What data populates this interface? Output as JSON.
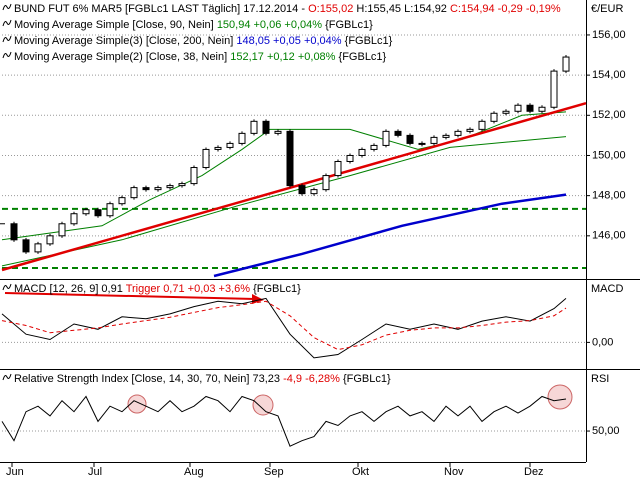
{
  "chart_data": [
    {
      "type": "candlestick",
      "header": [
        {
          "text": "BUND FUT 6% MAR5 [FGBLc1 LAST Täglich] 17.12.2014 - ",
          "color": "#000000"
        },
        {
          "text": "O:155,02 ",
          "color": "#e00000"
        },
        {
          "text": "H:155,45 L:154,92 ",
          "color": "#000000"
        },
        {
          "text": "C:154,94 -0,29 -0,19%",
          "color": "#e00000"
        }
      ],
      "unit": "€/EUR",
      "source": "{FGBLc1}",
      "x": [
        0,
        3,
        6,
        9,
        12,
        15,
        18,
        21,
        24,
        27,
        30,
        33,
        36,
        39,
        42,
        45,
        48,
        51,
        54,
        57,
        60,
        63,
        66,
        69,
        72,
        75,
        78,
        81,
        84,
        87,
        90,
        93,
        96,
        99,
        102,
        105,
        108,
        111,
        114,
        117,
        120,
        123,
        126,
        129,
        132,
        135,
        138,
        141
      ],
      "close": [
        146.6,
        145.8,
        145.2,
        145.6,
        146.0,
        146.6,
        147.1,
        147.3,
        147.0,
        147.6,
        147.9,
        148.4,
        148.3,
        148.4,
        148.5,
        148.6,
        149.4,
        150.3,
        150.4,
        150.6,
        151.1,
        151.7,
        151.1,
        151.2,
        148.5,
        148.1,
        148.3,
        149.0,
        149.7,
        150.0,
        150.3,
        150.5,
        151.2,
        151.0,
        150.6,
        150.6,
        150.9,
        151.0,
        151.2,
        151.3,
        151.7,
        152.1,
        152.2,
        152.5,
        152.2,
        152.4,
        154.2,
        154.9
      ],
      "overlays": [
        {
          "name": "Moving Average Simple [Close, 90, Nein]",
          "value_text": "150,94 +0,06 +0,04%",
          "color": "#008000",
          "width": 1,
          "x": [
            0,
            30,
            59,
            87,
            112,
            141
          ],
          "values": [
            144.5,
            145.8,
            147.5,
            149.0,
            150.4,
            150.94
          ]
        },
        {
          "name": "Moving Average Simple(3) [Close, 200, Nein]",
          "value_text": "148,05 +0,05 +0,04%",
          "color": "#0000cc",
          "width": 2.5,
          "x": [
            53,
            75,
            100,
            125,
            141
          ],
          "values": [
            144.0,
            145.1,
            146.5,
            147.6,
            148.05
          ]
        },
        {
          "name": "Moving Average Simple(2) [Close, 38, Nein]",
          "value_text": "152,17 +0,12 +0,08%",
          "color": "#008000",
          "width": 1,
          "x": [
            0,
            25,
            37,
            50,
            60,
            67,
            87,
            104,
            115,
            130,
            141
          ],
          "values": [
            145.8,
            146.5,
            147.8,
            149.0,
            150.3,
            151.3,
            151.3,
            150.3,
            150.8,
            152.0,
            152.17
          ]
        }
      ],
      "trendline": {
        "color": "#e00000",
        "x": [
          0,
          146
        ],
        "values": [
          144.3,
          152.6
        ]
      },
      "levels": {
        "color": "#008000",
        "values": [
          147.34,
          144.4
        ]
      },
      "ylim": [
        143.9,
        157.74
      ],
      "yticks": [
        {
          "value": 146,
          "label": "146,00"
        },
        {
          "value": 148,
          "label": "148,00"
        },
        {
          "value": 150,
          "label": "150,00"
        },
        {
          "value": 152,
          "label": "152,00"
        },
        {
          "value": 154,
          "label": "154,00"
        },
        {
          "value": 156,
          "label": "156,00"
        }
      ]
    },
    {
      "type": "line",
      "title": "MACD",
      "legend": [
        {
          "text": "MACD [12, 26, 9] 0,91 ",
          "color": "#000000"
        },
        {
          "text": "Trigger 0,71 +0,03 +3,6% ",
          "color": "#e00000"
        },
        {
          "text": "{FGBLc1}",
          "color": "#000000"
        }
      ],
      "x": [
        0,
        6,
        12,
        18,
        24,
        30,
        36,
        42,
        48,
        54,
        60,
        66,
        72,
        78,
        84,
        90,
        96,
        102,
        108,
        114,
        120,
        126,
        132,
        138,
        141
      ],
      "series": [
        {
          "name": "MACD",
          "color": "#000000",
          "dash": false,
          "values": [
            0.59,
            0.17,
            0.06,
            0.38,
            0.27,
            0.53,
            0.49,
            0.59,
            0.74,
            0.85,
            0.8,
            0.91,
            0.17,
            -0.32,
            -0.25,
            0.06,
            0.38,
            0.27,
            0.38,
            0.27,
            0.44,
            0.53,
            0.44,
            0.7,
            0.91
          ]
        },
        {
          "name": "Trigger",
          "color": "#e00000",
          "dash": true,
          "values": [
            0.45,
            0.35,
            0.2,
            0.25,
            0.3,
            0.38,
            0.45,
            0.52,
            0.62,
            0.72,
            0.78,
            0.85,
            0.55,
            0.1,
            -0.15,
            -0.05,
            0.15,
            0.25,
            0.3,
            0.3,
            0.35,
            0.42,
            0.45,
            0.55,
            0.71
          ]
        }
      ],
      "ylim": [
        -0.53,
        1.27
      ],
      "yticks": [
        {
          "value": 0,
          "label": "0,00"
        }
      ]
    },
    {
      "type": "line",
      "title": "RSI",
      "legend": [
        {
          "text": "Relative Strength Index [Close, 14, 30, 70, Nein] 73,23 ",
          "color": "#000000"
        },
        {
          "text": "-4,9 -6,28% ",
          "color": "#e00000"
        },
        {
          "text": "{FGBLc1}",
          "color": "#000000"
        }
      ],
      "x": [
        0,
        3,
        6,
        9,
        12,
        15,
        18,
        21,
        24,
        27,
        30,
        33,
        36,
        39,
        42,
        45,
        48,
        51,
        54,
        57,
        60,
        63,
        66,
        69,
        72,
        75,
        78,
        81,
        84,
        87,
        90,
        93,
        96,
        99,
        102,
        105,
        108,
        111,
        114,
        117,
        120,
        123,
        126,
        129,
        132,
        135,
        138,
        141
      ],
      "series": [
        {
          "name": "RSI",
          "color": "#000000",
          "dash": false,
          "values": [
            57,
            43,
            64,
            68,
            61,
            72,
            64,
            75,
            57,
            68,
            64,
            72,
            68,
            64,
            72,
            64,
            68,
            75,
            72,
            64,
            75,
            72,
            64,
            61,
            39,
            43,
            46,
            57,
            54,
            61,
            64,
            57,
            64,
            68,
            61,
            64,
            57,
            68,
            61,
            68,
            57,
            64,
            68,
            63,
            68,
            75,
            72,
            73.23
          ]
        }
      ],
      "ylim": [
        28.3,
        93.5
      ],
      "yticks": [
        {
          "value": 50,
          "label": "50,00"
        }
      ],
      "xlim": [
        0,
        146
      ],
      "xticks": [
        {
          "value": 2.5,
          "label": "Jun"
        },
        {
          "value": 23,
          "label": "Jul"
        },
        {
          "value": 47,
          "label": "Aug"
        },
        {
          "value": 67,
          "label": "Sep"
        },
        {
          "value": 89,
          "label": "Okt"
        },
        {
          "value": 112,
          "label": "Nov"
        },
        {
          "value": 132,
          "label": "Dez"
        }
      ]
    }
  ]
}
